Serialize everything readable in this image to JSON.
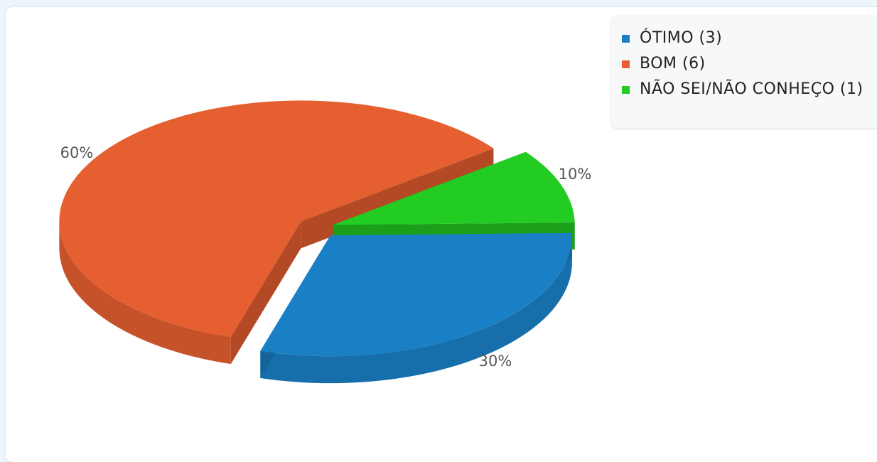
{
  "chart_data": {
    "type": "pie",
    "is_3d": true,
    "legend_position": "top-right",
    "slices": [
      {
        "label": "ÓTIMO (3)",
        "value": 3,
        "percent_label": "30%",
        "color": "#1a80c6"
      },
      {
        "label": "BOM (6)",
        "value": 6,
        "percent_label": "60%",
        "color": "#e55f30"
      },
      {
        "label": "NÃO SEI/NÃO CONHEÇO (1)",
        "value": 1,
        "percent_label": "10%",
        "color": "#23cc23"
      }
    ]
  },
  "legend": {
    "items": [
      {
        "label": "ÓTIMO (3)",
        "color": "#1a80c6"
      },
      {
        "label": "BOM (6)",
        "color": "#e55f30"
      },
      {
        "label": "NÃO SEI/NÃO CONHEÇO (1)",
        "color": "#23cc23"
      }
    ]
  }
}
